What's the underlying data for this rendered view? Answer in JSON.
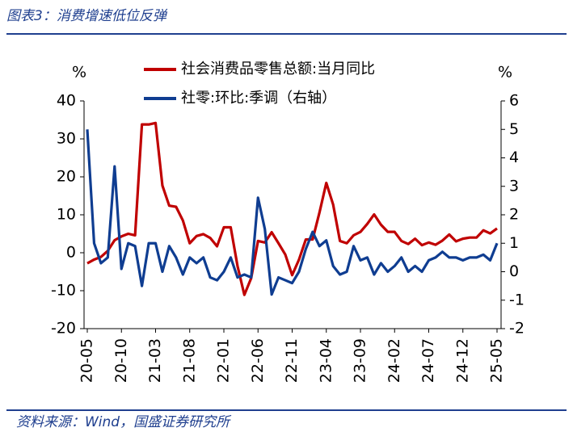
{
  "chart_data": {
    "type": "line",
    "title": "图表3：消费增速低位反弹",
    "source": "资料来源：Wind，国盛证券研究所",
    "y_label": "%",
    "y2_label": "%",
    "legend": "upper center",
    "categories": [
      "20-05",
      null,
      null,
      null,
      null,
      "20-10",
      null,
      null,
      null,
      null,
      "21-03",
      null,
      null,
      null,
      null,
      "21-08",
      null,
      null,
      null,
      null,
      "22-01",
      null,
      null,
      null,
      null,
      "22-06",
      null,
      null,
      null,
      null,
      "22-11",
      null,
      null,
      null,
      null,
      "23-04",
      null,
      null,
      null,
      null,
      "23-09",
      null,
      null,
      null,
      null,
      "24-02",
      null,
      null,
      null,
      null,
      "24-07",
      null,
      null,
      null,
      null,
      "24-12",
      null,
      null,
      null,
      null,
      "25-05"
    ],
    "series": [
      {
        "name": "社会消费品零售总额:当月同比",
        "color": "#c00000",
        "values": [
          -2.8,
          -1.8,
          -1.1,
          0.5,
          3.3,
          4.3,
          5.0,
          4.6,
          33.8,
          33.8,
          34.2,
          17.7,
          12.4,
          12.1,
          8.5,
          2.5,
          4.4,
          4.9,
          3.9,
          1.7,
          6.7,
          6.7,
          -3.5,
          -11.1,
          -6.7,
          3.1,
          2.7,
          5.4,
          2.5,
          -0.5,
          -5.9,
          -1.8,
          3.5,
          3.5,
          10.6,
          18.4,
          12.7,
          3.1,
          2.5,
          4.6,
          5.5,
          7.6,
          10.1,
          7.4,
          5.5,
          5.5,
          3.1,
          2.3,
          3.7,
          2.0,
          2.7,
          2.1,
          3.2,
          4.8,
          3.0,
          3.7,
          4.0,
          4.0,
          5.9,
          5.1,
          6.4
        ]
      },
      {
        "name": "社零:环比:季调（右轴）",
        "color": "#0f3d91",
        "axis": "y2",
        "values": [
          5.0,
          1.0,
          0.3,
          0.5,
          3.7,
          0.1,
          1.0,
          0.9,
          -0.5,
          1.0,
          1.0,
          0.0,
          0.9,
          0.5,
          -0.1,
          0.5,
          0.3,
          0.5,
          -0.2,
          -0.3,
          0.0,
          0.5,
          -0.2,
          -0.1,
          -0.2,
          2.6,
          1.5,
          -0.8,
          -0.2,
          -0.3,
          -0.4,
          0.0,
          0.8,
          1.4,
          0.9,
          1.1,
          0.2,
          -0.1,
          0.0,
          0.9,
          0.4,
          0.5,
          -0.1,
          0.3,
          0.0,
          0.2,
          0.5,
          0.0,
          0.2,
          0.0,
          0.4,
          0.5,
          0.7,
          0.5,
          0.5,
          0.4,
          0.5,
          0.5,
          0.6,
          0.4,
          1.0
        ]
      }
    ],
    "ylim": [
      -20,
      40
    ],
    "yticks": [
      -20,
      -10,
      0,
      10,
      20,
      30,
      40
    ],
    "y2lim": [
      -2,
      6
    ],
    "y2ticks": [
      -2,
      -1,
      0,
      1,
      2,
      3,
      4,
      5,
      6
    ]
  }
}
